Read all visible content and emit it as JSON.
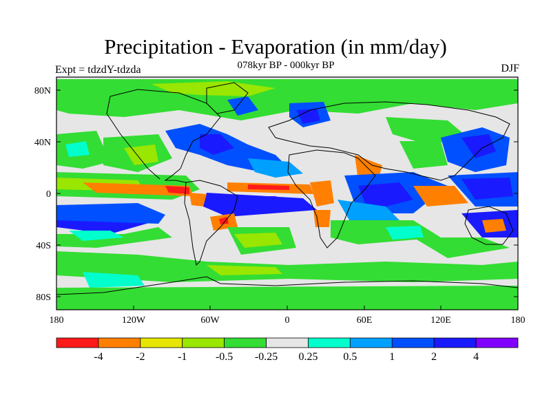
{
  "title": "Precipitation - Evaporation (in mm/day)",
  "subtitle": "078kyr BP - 000kyr BP",
  "expt_label": "Expt = tdzdY-tdzda",
  "season": "DJF",
  "lat_ticks": [
    "80N",
    "40N",
    "0",
    "40S",
    "80S"
  ],
  "lon_ticks": [
    "180",
    "120W",
    "60W",
    "0",
    "60E",
    "120E",
    "180"
  ],
  "legend": {
    "colors": [
      "#ff1a1a",
      "#ff8000",
      "#e6e600",
      "#99e600",
      "#33dd33",
      "#e6e6e6",
      "#00ffcc",
      "#00a0ff",
      "#0050ff",
      "#1a1aff",
      "#8000ff"
    ],
    "labels": [
      "-4",
      "-2",
      "-1",
      "-0.5",
      "-0.25",
      "0.25",
      "0.5",
      "1",
      "2",
      "4"
    ]
  },
  "colors": {
    "background": "#e6e6e6",
    "coast": "#000000"
  }
}
